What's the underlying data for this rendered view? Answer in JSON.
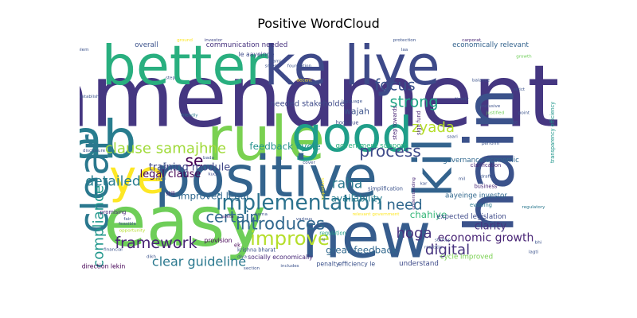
{
  "chart_data": {
    "type": "wordcloud",
    "title": "Positive WordCloud",
    "palette": [
      "#440154",
      "#46327e",
      "#365c8d",
      "#277f8e",
      "#1fa187",
      "#4ac16d",
      "#a0da39",
      "#fde725"
    ],
    "words": [
      {
        "text": "amendment",
        "weight": 1.0,
        "color": "#453781",
        "x": 0.46,
        "y": 0.25
      },
      {
        "text": "hain",
        "weight": 0.78,
        "color": "#3b528b",
        "x": 0.86,
        "y": 0.52,
        "rotate": true
      },
      {
        "text": "ke liye",
        "weight": 0.62,
        "color": "#3e4a89",
        "x": 0.57,
        "y": 0.12
      },
      {
        "text": "better",
        "weight": 0.62,
        "color": "#29af7f",
        "x": 0.22,
        "y": 0.12
      },
      {
        "text": "rule",
        "weight": 0.7,
        "color": "#7ad151",
        "x": 0.39,
        "y": 0.43
      },
      {
        "text": "ab",
        "weight": 0.6,
        "color": "#287d8e",
        "x": 0.05,
        "y": 0.43
      },
      {
        "text": "good",
        "weight": 0.55,
        "color": "#1f9e89",
        "x": 0.57,
        "y": 0.41
      },
      {
        "text": "kil",
        "weight": 0.6,
        "color": "#33638d",
        "x": 0.74,
        "y": 0.55,
        "rotate": true
      },
      {
        "text": "positive",
        "weight": 0.65,
        "color": "#33638d",
        "x": 0.39,
        "y": 0.59
      },
      {
        "text": "ye",
        "weight": 0.52,
        "color": "#fde725",
        "x": 0.12,
        "y": 0.59
      },
      {
        "text": "clear",
        "weight": 0.45,
        "color": "#2a788e",
        "x": 0.03,
        "y": 0.62,
        "rotate": true
      },
      {
        "text": "easy",
        "weight": 0.8,
        "color": "#6ece58",
        "x": 0.22,
        "y": 0.78
      },
      {
        "text": "new",
        "weight": 0.72,
        "color": "#365c8d",
        "x": 0.6,
        "y": 0.84
      },
      {
        "text": "implementation",
        "weight": 0.22,
        "color": "#2c728e",
        "x": 0.46,
        "y": 0.7
      },
      {
        "text": "improve",
        "weight": 0.2,
        "color": "#b5de2b",
        "x": 0.44,
        "y": 0.85
      },
      {
        "text": "introduces",
        "weight": 0.17,
        "color": "#31688e",
        "x": 0.42,
        "y": 0.79
      },
      {
        "text": "certain",
        "weight": 0.15,
        "color": "#31688e",
        "x": 0.32,
        "y": 0.76
      },
      {
        "text": "framework",
        "weight": 0.15,
        "color": "#482475",
        "x": 0.16,
        "y": 0.87
      },
      {
        "text": "compliance",
        "weight": 0.14,
        "color": "#1f968b",
        "x": 0.04,
        "y": 0.8,
        "rotate": true
      },
      {
        "text": "clause samajhne",
        "weight": 0.14,
        "color": "#a0da39",
        "x": 0.18,
        "y": 0.47
      },
      {
        "text": "process",
        "weight": 0.16,
        "color": "#3e4a89",
        "x": 0.65,
        "y": 0.48
      },
      {
        "text": "strong",
        "weight": 0.15,
        "color": "#20a486",
        "x": 0.7,
        "y": 0.27
      },
      {
        "text": "focus",
        "weight": 0.15,
        "color": "#3b528b",
        "x": 0.66,
        "y": 0.2
      },
      {
        "text": "zyada",
        "weight": 0.14,
        "color": "#b5de2b",
        "x": 0.74,
        "y": 0.38
      },
      {
        "text": "se",
        "weight": 0.16,
        "color": "#440154",
        "x": 0.24,
        "y": 0.52
      },
      {
        "text": "detailed",
        "weight": 0.13,
        "color": "#287d8e",
        "x": 0.07,
        "y": 0.61
      },
      {
        "text": "raha",
        "weight": 0.13,
        "color": "#2a788e",
        "x": 0.56,
        "y": 0.62
      },
      {
        "text": "need",
        "weight": 0.14,
        "color": "#31688e",
        "x": 0.68,
        "y": 0.71
      },
      {
        "text": "hoga",
        "weight": 0.14,
        "color": "#46327e",
        "x": 0.7,
        "y": 0.83
      },
      {
        "text": "digital",
        "weight": 0.14,
        "color": "#46327e",
        "x": 0.77,
        "y": 0.9
      },
      {
        "text": "clear guideline",
        "weight": 0.12,
        "color": "#2a788e",
        "x": 0.25,
        "y": 0.95
      },
      {
        "text": "economic growth",
        "weight": 0.1,
        "color": "#482475",
        "x": 0.85,
        "y": 0.85
      },
      {
        "text": "clarity",
        "weight": 0.09,
        "color": "#46327e",
        "x": 0.86,
        "y": 0.8
      },
      {
        "text": "training module",
        "weight": 0.09,
        "color": "#404688",
        "x": 0.23,
        "y": 0.55
      },
      {
        "text": "legal clause",
        "weight": 0.09,
        "color": "#440154",
        "x": 0.19,
        "y": 0.58
      },
      {
        "text": "improved legal",
        "weight": 0.08,
        "color": "#31688e",
        "x": 0.28,
        "y": 0.67
      },
      {
        "text": "feedback cycle",
        "weight": 0.08,
        "color": "#21918c",
        "x": 0.43,
        "y": 0.46
      },
      {
        "text": "great feedback",
        "weight": 0.08,
        "color": "#31688e",
        "x": 0.59,
        "y": 0.9
      },
      {
        "text": "availability",
        "weight": 0.08,
        "color": "#287d8e",
        "x": 0.58,
        "y": 0.68
      },
      {
        "text": "chahiye",
        "weight": 0.08,
        "color": "#35b779",
        "x": 0.73,
        "y": 0.75
      },
      {
        "text": "wajah",
        "weight": 0.07,
        "color": "#3b528b",
        "x": 0.58,
        "y": 0.31
      },
      {
        "text": "needed stakeholder",
        "weight": 0.06,
        "color": "#3e4a89",
        "x": 0.48,
        "y": 0.28
      },
      {
        "text": "communication needed",
        "weight": 0.05,
        "color": "#46327e",
        "x": 0.35,
        "y": 0.03
      },
      {
        "text": "overall",
        "weight": 0.05,
        "color": "#3b528b",
        "x": 0.14,
        "y": 0.03
      },
      {
        "text": "economically relevant",
        "weight": 0.05,
        "color": "#33638d",
        "x": 0.86,
        "y": 0.03
      },
      {
        "text": "le aayeinge",
        "weight": 0.04,
        "color": "#3e4a89",
        "x": 0.37,
        "y": 0.07
      },
      {
        "text": "government support",
        "weight": 0.05,
        "color": "#29af7f",
        "x": 0.61,
        "y": 0.46
      },
      {
        "text": "governance economic",
        "weight": 0.05,
        "color": "#31688e",
        "x": 0.84,
        "y": 0.52
      },
      {
        "text": "aayeinge investor",
        "weight": 0.05,
        "color": "#31688e",
        "x": 0.83,
        "y": 0.67
      },
      {
        "text": "expected legislation",
        "weight": 0.05,
        "color": "#3e4a89",
        "x": 0.82,
        "y": 0.76
      },
      {
        "text": "cycle improved",
        "weight": 0.05,
        "color": "#7ad151",
        "x": 0.81,
        "y": 0.93
      },
      {
        "text": "understand",
        "weight": 0.05,
        "color": "#3e4a89",
        "x": 0.71,
        "y": 0.96
      },
      {
        "text": "efficiency le",
        "weight": 0.04,
        "color": "#3b528b",
        "x": 0.58,
        "y": 0.96
      },
      {
        "text": "penalty",
        "weight": 0.04,
        "color": "#3b528b",
        "x": 0.52,
        "y": 0.96
      },
      {
        "text": "socially economically",
        "weight": 0.04,
        "color": "#482878",
        "x": 0.42,
        "y": 0.93
      },
      {
        "text": "direction lekin",
        "weight": 0.04,
        "color": "#440154",
        "x": 0.05,
        "y": 0.97
      },
      {
        "text": "provision",
        "weight": 0.04,
        "color": "#440154",
        "x": 0.29,
        "y": 0.86
      },
      {
        "text": "krishna bharat",
        "weight": 0.03,
        "color": "#3b528b",
        "x": 0.37,
        "y": 0.9
      },
      {
        "text": "regulation",
        "weight": 0.03,
        "color": "#1fa187",
        "x": 0.53,
        "y": 0.83
      },
      {
        "text": "simplification",
        "weight": 0.03,
        "color": "#3b528b",
        "x": 0.64,
        "y": 0.64
      },
      {
        "text": "business",
        "weight": 0.03,
        "color": "#482475",
        "x": 0.85,
        "y": 0.63
      },
      {
        "text": "evolving",
        "weight": 0.03,
        "color": "#2a788e",
        "x": 0.84,
        "y": 0.71
      },
      {
        "text": "clarification",
        "weight": 0.03,
        "color": "#482878",
        "x": 0.85,
        "y": 0.54
      },
      {
        "text": "step towards",
        "weight": 0.03,
        "color": "#482475",
        "x": 0.66,
        "y": 0.36,
        "rotate": true
      },
      {
        "text": "sign fund",
        "weight": 0.03,
        "color": "#482475",
        "x": 0.71,
        "y": 0.36,
        "rotate": true
      },
      {
        "text": "transparency efficiency",
        "weight": 0.03,
        "color": "#1f968b",
        "x": 0.99,
        "y": 0.4,
        "rotate": true
      },
      {
        "text": "promising",
        "weight": 0.03,
        "color": "#482475",
        "x": 0.07,
        "y": 0.74
      },
      {
        "text": "still",
        "weight": 0.03,
        "color": "#482475",
        "x": 0.19,
        "y": 0.66
      },
      {
        "text": "kuch",
        "weight": 0.02,
        "color": "#3e4a89",
        "x": 0.28,
        "y": 0.58
      },
      {
        "text": "hogi due",
        "weight": 0.03,
        "color": "#3e4a89",
        "x": 0.56,
        "y": 0.36
      },
      {
        "text": "language",
        "weight": 0.02,
        "color": "#3b528b",
        "x": 0.57,
        "y": 0.27
      },
      {
        "text": "ek",
        "weight": 0.03,
        "color": "#440154",
        "x": 0.33,
        "y": 0.88
      },
      {
        "text": "karna",
        "weight": 0.02,
        "color": "#3b528b",
        "x": 0.38,
        "y": 0.75
      },
      {
        "text": "various",
        "weight": 0.02,
        "color": "#3b528b",
        "x": 0.47,
        "y": 0.77
      },
      {
        "text": "draft",
        "weight": 0.02,
        "color": "#3b528b",
        "x": 0.85,
        "y": 0.59
      },
      {
        "text": "regulatory",
        "weight": 0.02,
        "color": "#2a788e",
        "x": 0.95,
        "y": 0.72
      },
      {
        "text": "balance",
        "weight": 0.02,
        "color": "#3b528b",
        "x": 0.84,
        "y": 0.18
      },
      {
        "text": "growth",
        "weight": 0.02,
        "color": "#6ece58",
        "x": 0.93,
        "y": 0.08
      },
      {
        "text": "carporat",
        "weight": 0.02,
        "color": "#482475",
        "x": 0.82,
        "y": 0.01
      },
      {
        "text": "investor",
        "weight": 0.02,
        "color": "#404688",
        "x": 0.28,
        "y": 0.01
      },
      {
        "text": "establish",
        "weight": 0.02,
        "color": "#3b528b",
        "x": 0.02,
        "y": 0.25
      },
      {
        "text": "problem",
        "weight": 0.02,
        "color": "#3b528b",
        "x": 0.0,
        "y": 0.05
      },
      {
        "text": "decent",
        "weight": 0.02,
        "color": "#fde725",
        "x": 0.47,
        "y": 0.18
      },
      {
        "text": "understanding",
        "weight": 0.02,
        "color": "#482878",
        "x": 0.7,
        "y": 0.66,
        "rotate": true
      },
      {
        "text": "relevant government",
        "weight": 0.02,
        "color": "#fde725",
        "x": 0.62,
        "y": 0.75
      },
      {
        "text": "sakta",
        "weight": 0.02,
        "color": "#482475",
        "x": 0.31,
        "y": 0.76
      },
      {
        "text": "startup",
        "weight": 0.02,
        "color": "#3b528b",
        "x": 0.76,
        "y": 0.86
      },
      {
        "text": "includes",
        "weight": 0.02,
        "color": "#3b528b",
        "x": 0.44,
        "y": 0.97
      },
      {
        "text": "section",
        "weight": 0.02,
        "color": "#3b528b",
        "x": 0.36,
        "y": 0.98
      },
      {
        "text": "feasible",
        "weight": 0.02,
        "color": "#3b528b",
        "x": 0.1,
        "y": 0.79
      },
      {
        "text": "opportunity",
        "weight": 0.02,
        "color": "#b5de2b",
        "x": 0.11,
        "y": 0.82
      },
      {
        "text": "disclosure",
        "weight": 0.02,
        "color": "#3b528b",
        "x": 0.03,
        "y": 0.48
      },
      {
        "text": "friendly",
        "weight": 0.02,
        "color": "#2a788e",
        "x": 0.23,
        "y": 0.33
      },
      {
        "text": "foundation",
        "weight": 0.02,
        "color": "#3b528b",
        "x": 0.46,
        "y": 0.12
      },
      {
        "text": "protection",
        "weight": 0.02,
        "color": "#3b528b",
        "x": 0.68,
        "y": 0.01
      },
      {
        "text": "timely",
        "weight": 0.02,
        "color": "#3b528b",
        "x": 0.8,
        "y": 0.26
      },
      {
        "text": "inclusive",
        "weight": 0.02,
        "color": "#3b528b",
        "x": 0.86,
        "y": 0.29
      },
      {
        "text": "justified",
        "weight": 0.02,
        "color": "#6ece58",
        "x": 0.87,
        "y": 0.32
      },
      {
        "text": "point",
        "weight": 0.02,
        "color": "#3b528b",
        "x": 0.93,
        "y": 0.32
      },
      {
        "text": "change",
        "weight": 0.02,
        "color": "#3b528b",
        "x": 0.9,
        "y": 0.36
      },
      {
        "text": "strict",
        "weight": 0.02,
        "color": "#3b528b",
        "x": 0.92,
        "y": 0.22
      },
      {
        "text": "saari",
        "weight": 0.02,
        "color": "#3b528b",
        "x": 0.78,
        "y": 0.42
      },
      {
        "text": "perform",
        "weight": 0.02,
        "color": "#3b528b",
        "x": 0.86,
        "y": 0.45
      },
      {
        "text": "bhi",
        "weight": 0.02,
        "color": "#3b528b",
        "x": 0.96,
        "y": 0.87
      },
      {
        "text": "lagti",
        "weight": 0.02,
        "color": "#3b528b",
        "x": 0.95,
        "y": 0.91
      },
      {
        "text": "realistic",
        "weight": 0.02,
        "color": "#3b528b",
        "x": 0.74,
        "y": 0.89
      },
      {
        "text": "financial",
        "weight": 0.02,
        "color": "#3b528b",
        "x": 0.07,
        "y": 0.9
      },
      {
        "text": "kar",
        "weight": 0.02,
        "color": "#3b528b",
        "x": 0.72,
        "y": 0.62
      },
      {
        "text": "kami",
        "weight": 0.02,
        "color": "#3b528b",
        "x": 0.41,
        "y": 0.1
      },
      {
        "text": "smes",
        "weight": 0.02,
        "color": "#3b528b",
        "x": 0.4,
        "y": 0.12
      },
      {
        "text": "laa",
        "weight": 0.02,
        "color": "#3b528b",
        "x": 0.68,
        "y": 0.05
      },
      {
        "text": "ground",
        "weight": 0.02,
        "color": "#fde725",
        "x": 0.22,
        "y": 0.01
      },
      {
        "text": "step",
        "weight": 0.02,
        "color": "#3b528b",
        "x": 0.19,
        "y": 0.17
      },
      {
        "text": "cover",
        "weight": 0.02,
        "color": "#3b528b",
        "x": 0.48,
        "y": 0.53
      },
      {
        "text": "important",
        "weight": 0.02,
        "color": "#fde725",
        "x": 0.51,
        "y": 0.64,
        "rotate": true
      },
      {
        "text": "diya",
        "weight": 0.02,
        "color": "#3b528b",
        "x": 0.34,
        "y": 0.93
      },
      {
        "text": "dikh",
        "weight": 0.02,
        "color": "#3b528b",
        "x": 0.15,
        "y": 0.93
      },
      {
        "text": "bada",
        "weight": 0.02,
        "color": "#3b528b",
        "x": 0.27,
        "y": 0.51
      },
      {
        "text": "hogi",
        "weight": 0.02,
        "color": "#3b528b",
        "x": 0.17,
        "y": 0.6
      },
      {
        "text": "kaafi",
        "weight": 0.02,
        "color": "#3b528b",
        "x": 0.18,
        "y": 0.55,
        "rotate": true
      },
      {
        "text": "mil",
        "weight": 0.02,
        "color": "#3b528b",
        "x": 0.8,
        "y": 0.6
      },
      {
        "text": "fair",
        "weight": 0.02,
        "color": "#3b528b",
        "x": 0.1,
        "y": 0.77
      },
      {
        "text": "hi",
        "weight": 0.02,
        "color": "#3b528b",
        "x": 0.51,
        "y": 0.86
      }
    ]
  }
}
